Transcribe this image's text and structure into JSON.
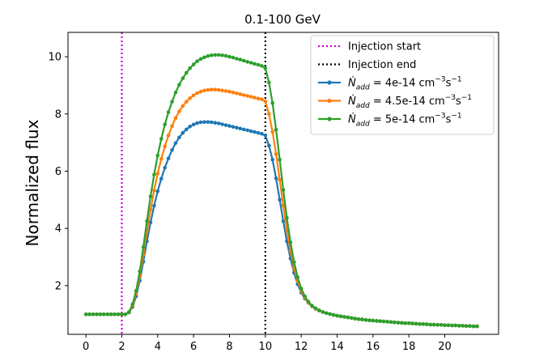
{
  "chart_data": {
    "type": "line",
    "title": "0.1-100 GeV",
    "xlabel": "",
    "ylabel": "Normalized flux",
    "xlim": [
      -1.0,
      23.0
    ],
    "ylim": [
      0.3,
      10.85
    ],
    "xticks": [
      0,
      2,
      4,
      6,
      8,
      10,
      12,
      14,
      16,
      18,
      20
    ],
    "yticks": [
      2,
      4,
      6,
      8,
      10
    ],
    "grid": false,
    "legend_position": "top-right",
    "vlines": [
      {
        "name": "Injection start",
        "x": 2.0,
        "color": "#cc00cc",
        "style": "dotted"
      },
      {
        "name": "Injection end",
        "x": 10.0,
        "color": "#000000",
        "style": "dotted"
      }
    ],
    "x": [
      0.0,
      0.2,
      0.4,
      0.6,
      0.8,
      1.0,
      1.2,
      1.4,
      1.6,
      1.8,
      2.0,
      2.2,
      2.4,
      2.6,
      2.8,
      3.0,
      3.2,
      3.4,
      3.6,
      3.8,
      4.0,
      4.2,
      4.4,
      4.6,
      4.8,
      5.0,
      5.2,
      5.4,
      5.6,
      5.8,
      6.0,
      6.2,
      6.4,
      6.6,
      6.8,
      7.0,
      7.2,
      7.4,
      7.6,
      7.8,
      8.0,
      8.2,
      8.4,
      8.6,
      8.8,
      9.0,
      9.2,
      9.4,
      9.6,
      9.8,
      10.0,
      10.2,
      10.4,
      10.6,
      10.8,
      11.0,
      11.2,
      11.4,
      11.6,
      11.8,
      12.0,
      12.2,
      12.4,
      12.6,
      12.8,
      13.0,
      13.2,
      13.4,
      13.6,
      13.8,
      14.0,
      14.2,
      14.4,
      14.6,
      14.8,
      15.0,
      15.2,
      15.4,
      15.6,
      15.8,
      16.0,
      16.2,
      16.4,
      16.6,
      16.8,
      17.0,
      17.2,
      17.4,
      17.6,
      17.8,
      18.0,
      18.2,
      18.4,
      18.6,
      18.8,
      19.0,
      19.2,
      19.4,
      19.6,
      19.8,
      20.0,
      20.2,
      20.4,
      20.6,
      20.8,
      21.0,
      21.2,
      21.4,
      21.6,
      21.8
    ],
    "series": [
      {
        "name": "Ṅadd = 4e-14 cm⁻³s⁻¹",
        "legend_label": {
          "lhs": "Ṅ",
          "sub": "add",
          "rhs": " = 4e-14 cm",
          "sup1": "−3",
          "mid": "s",
          "sup2": "−1"
        },
        "color": "#1f77b4",
        "values": [
          1.0,
          1.0,
          1.0,
          1.0,
          1.0,
          1.0,
          1.0,
          1.0,
          1.0,
          1.0,
          1.0,
          1.0,
          1.06,
          1.26,
          1.63,
          2.17,
          2.84,
          3.55,
          4.21,
          4.79,
          5.3,
          5.74,
          6.12,
          6.45,
          6.74,
          6.98,
          7.18,
          7.34,
          7.46,
          7.56,
          7.63,
          7.68,
          7.71,
          7.72,
          7.72,
          7.71,
          7.69,
          7.67,
          7.64,
          7.61,
          7.58,
          7.55,
          7.52,
          7.49,
          7.46,
          7.43,
          7.4,
          7.37,
          7.34,
          7.31,
          7.25,
          6.9,
          6.4,
          5.75,
          5.0,
          4.25,
          3.55,
          2.95,
          2.45,
          2.05,
          1.76,
          1.55,
          1.4,
          1.28,
          1.19,
          1.13,
          1.08,
          1.04,
          1.01,
          0.98,
          0.95,
          0.93,
          0.91,
          0.89,
          0.87,
          0.85,
          0.83,
          0.82,
          0.8,
          0.79,
          0.78,
          0.77,
          0.76,
          0.75,
          0.74,
          0.73,
          0.72,
          0.71,
          0.7,
          0.69,
          0.69,
          0.68,
          0.67,
          0.66,
          0.66,
          0.65,
          0.64,
          0.64,
          0.63,
          0.63,
          0.62,
          0.62,
          0.61,
          0.61,
          0.6,
          0.6,
          0.59,
          0.59,
          0.58,
          0.58
        ]
      },
      {
        "name": "Ṅadd = 4.5e-14 cm⁻³s⁻¹",
        "legend_label": {
          "lhs": "Ṅ",
          "sub": "add",
          "rhs": " = 4.5e-14 cm",
          "sup1": "−3",
          "mid": "s",
          "sup2": "−1"
        },
        "color": "#ff7f0e",
        "values": [
          1.0,
          1.0,
          1.0,
          1.0,
          1.0,
          1.0,
          1.0,
          1.0,
          1.0,
          1.0,
          1.0,
          1.0,
          1.07,
          1.3,
          1.72,
          2.33,
          3.09,
          3.9,
          4.66,
          5.33,
          5.92,
          6.43,
          6.87,
          7.25,
          7.58,
          7.86,
          8.09,
          8.28,
          8.43,
          8.55,
          8.65,
          8.73,
          8.78,
          8.82,
          8.84,
          8.85,
          8.85,
          8.84,
          8.82,
          8.8,
          8.78,
          8.75,
          8.72,
          8.69,
          8.66,
          8.63,
          8.6,
          8.57,
          8.54,
          8.51,
          8.44,
          8.0,
          7.38,
          6.6,
          5.7,
          4.8,
          3.95,
          3.22,
          2.62,
          2.16,
          1.82,
          1.58,
          1.41,
          1.29,
          1.2,
          1.13,
          1.08,
          1.04,
          1.01,
          0.98,
          0.95,
          0.93,
          0.91,
          0.89,
          0.87,
          0.85,
          0.83,
          0.82,
          0.8,
          0.79,
          0.78,
          0.77,
          0.76,
          0.75,
          0.74,
          0.73,
          0.72,
          0.71,
          0.7,
          0.69,
          0.69,
          0.68,
          0.67,
          0.66,
          0.66,
          0.65,
          0.64,
          0.64,
          0.63,
          0.63,
          0.62,
          0.62,
          0.61,
          0.61,
          0.6,
          0.6,
          0.59,
          0.59,
          0.58,
          0.58
        ]
      },
      {
        "name": "Ṅadd = 5e-14 cm⁻³s⁻¹",
        "legend_label": {
          "lhs": "Ṅ",
          "sub": "add",
          "rhs": " = 5e-14 cm",
          "sup1": "−3",
          "mid": "s",
          "sup2": "−1"
        },
        "color": "#2ca02c",
        "values": [
          1.0,
          1.0,
          1.0,
          1.0,
          1.0,
          1.0,
          1.0,
          1.0,
          1.0,
          1.0,
          1.0,
          1.0,
          1.08,
          1.35,
          1.82,
          2.5,
          3.35,
          4.26,
          5.12,
          5.88,
          6.55,
          7.13,
          7.63,
          8.06,
          8.43,
          8.75,
          9.02,
          9.25,
          9.44,
          9.6,
          9.73,
          9.84,
          9.92,
          9.98,
          10.02,
          10.05,
          10.06,
          10.06,
          10.05,
          10.03,
          10.0,
          9.97,
          9.93,
          9.9,
          9.86,
          9.82,
          9.79,
          9.75,
          9.72,
          9.68,
          9.6,
          9.1,
          8.38,
          7.45,
          6.4,
          5.35,
          4.37,
          3.52,
          2.83,
          2.3,
          1.9,
          1.63,
          1.44,
          1.3,
          1.21,
          1.14,
          1.08,
          1.04,
          1.01,
          0.98,
          0.95,
          0.93,
          0.91,
          0.89,
          0.87,
          0.85,
          0.83,
          0.82,
          0.8,
          0.79,
          0.78,
          0.77,
          0.76,
          0.75,
          0.74,
          0.73,
          0.72,
          0.71,
          0.7,
          0.69,
          0.69,
          0.68,
          0.67,
          0.66,
          0.66,
          0.65,
          0.64,
          0.64,
          0.63,
          0.63,
          0.62,
          0.62,
          0.61,
          0.61,
          0.6,
          0.6,
          0.59,
          0.59,
          0.58,
          0.58
        ]
      }
    ]
  }
}
